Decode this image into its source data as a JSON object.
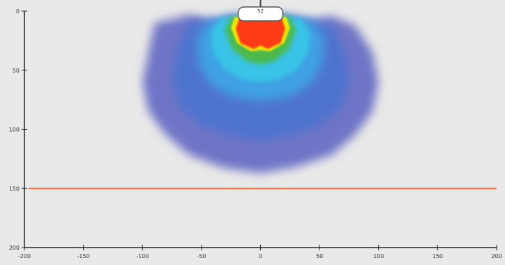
{
  "chart_data": {
    "type": "heatmap",
    "title": "",
    "xlabel": "",
    "ylabel": "",
    "xlim": [
      -200,
      200
    ],
    "ylim": [
      200,
      0
    ],
    "x_ticks": [
      {
        "value": -200,
        "label": "-200"
      },
      {
        "value": -150,
        "label": "-150"
      },
      {
        "value": -100,
        "label": "-100"
      },
      {
        "value": -50,
        "label": "-50"
      },
      {
        "value": 0,
        "label": "0"
      },
      {
        "value": 50,
        "label": "50"
      },
      {
        "value": 100,
        "label": "100"
      },
      {
        "value": 150,
        "label": "150"
      },
      {
        "value": 200,
        "label": "200"
      }
    ],
    "y_ticks": [
      {
        "value": 0,
        "label": "0"
      },
      {
        "value": 50,
        "label": "50"
      },
      {
        "value": 100,
        "label": "100"
      },
      {
        "value": 150,
        "label": "150"
      },
      {
        "value": 200,
        "label": "200"
      }
    ],
    "source": {
      "x": 0,
      "y": 0,
      "label": "S2"
    },
    "reference_line": {
      "y": 150,
      "color": "#ff6a3d"
    },
    "contours": [
      {
        "level": "low",
        "color": "#5a5fbf",
        "x": [
          -90,
          -60,
          -40,
          -20,
          0,
          20,
          40,
          60,
          80,
          95,
          100,
          95,
          80,
          60,
          30,
          0,
          -30,
          -60,
          -80,
          -95,
          -100,
          -95
        ],
        "y": [
          10,
          3,
          8,
          3,
          6,
          3,
          8,
          4,
          12,
          35,
          60,
          85,
          105,
          122,
          132,
          137,
          133,
          122,
          105,
          85,
          60,
          35
        ]
      },
      {
        "level": "low-mid",
        "color": "#4b73cf",
        "x": [
          -60,
          -40,
          -20,
          0,
          20,
          40,
          60,
          72,
          75,
          68,
          50,
          25,
          0,
          -25,
          -50,
          -68,
          -75,
          -72
        ],
        "y": [
          8,
          8,
          5,
          7,
          5,
          8,
          12,
          35,
          60,
          82,
          97,
          106,
          109,
          106,
          97,
          82,
          60,
          35
        ]
      },
      {
        "level": "mid",
        "color": "#3fa6e6",
        "x": [
          -45,
          -25,
          0,
          25,
          45,
          54,
          52,
          42,
          25,
          0,
          -25,
          -42,
          -52,
          -54
        ],
        "y": [
          8,
          6,
          8,
          6,
          8,
          25,
          45,
          62,
          72,
          76,
          72,
          62,
          45,
          25
        ]
      },
      {
        "level": "mid-high",
        "color": "#36c7e8",
        "x": [
          -35,
          -15,
          0,
          15,
          35,
          42,
          40,
          30,
          15,
          0,
          -15,
          -30,
          -40,
          -42
        ],
        "y": [
          6,
          4,
          6,
          4,
          6,
          20,
          36,
          50,
          58,
          60,
          58,
          50,
          36,
          20
        ]
      },
      {
        "level": "high",
        "color": "#4cb83a",
        "x": [
          -25,
          0,
          25,
          30,
          24,
          12,
          0,
          -12,
          -24,
          -30
        ],
        "y": [
          5,
          5,
          5,
          16,
          32,
          42,
          45,
          42,
          32,
          16
        ]
      },
      {
        "level": "very-high",
        "color": "#ffee00",
        "x": [
          -22,
          0,
          22,
          25,
          20,
          8,
          0,
          -8,
          -20,
          -25
        ],
        "y": [
          5,
          5,
          5,
          14,
          27,
          34,
          33,
          34,
          27,
          14
        ]
      },
      {
        "level": "max",
        "color": "#ff2a1a",
        "x": [
          -18,
          -6,
          6,
          18,
          21,
          17,
          6,
          0,
          -6,
          -17,
          -21
        ],
        "y": [
          6,
          3,
          3,
          6,
          15,
          27,
          32,
          29,
          32,
          27,
          15
        ]
      }
    ]
  }
}
